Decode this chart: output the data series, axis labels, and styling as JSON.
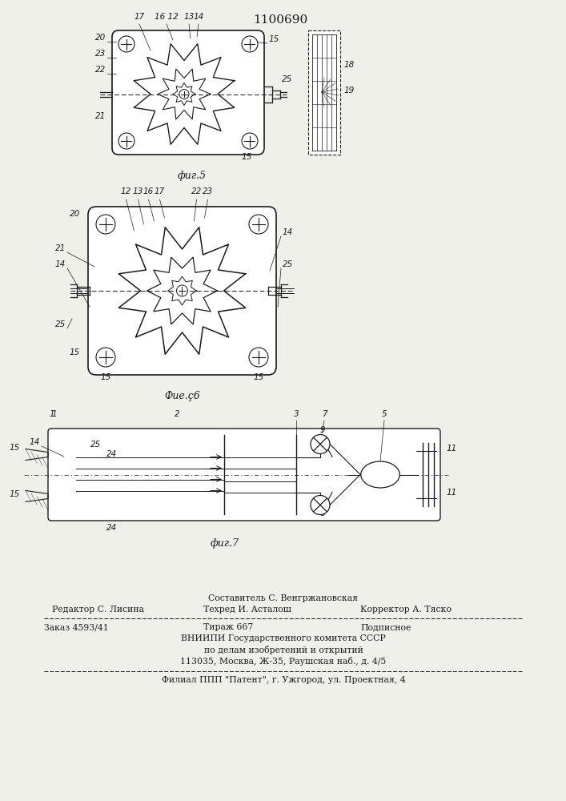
{
  "patent_number": "1100690",
  "fig5_label": "фиг.5",
  "fig6_label": "Фие.ç6",
  "fig7_label": "фиг.7",
  "footer_line1": "Составитель С. Венгржановская",
  "footer_line2_col1": "Редактор С. Лисина",
  "footer_line2_col2": "Техред И. Асталош",
  "footer_line2_col3": "Корректор А. Тяско",
  "footer_line3_col1": "Заказ 4593/41",
  "footer_line3_col2": "Тираж 667",
  "footer_line3_col3": "Подписное",
  "footer_line4": "ВНИИПИ Государственного комитета СССР",
  "footer_line5": "по делам изобретений и открытий",
  "footer_line6": "113035, Москва, Ж-35, Раушская наб., д. 4/5",
  "footer_line7": "Филиал ППП \"Патент\", г. Ужгород, ул. Проектная, 4",
  "bg_color": "#f0f0eb",
  "line_color": "#1a1a1a",
  "text_color": "#1a1a1a"
}
